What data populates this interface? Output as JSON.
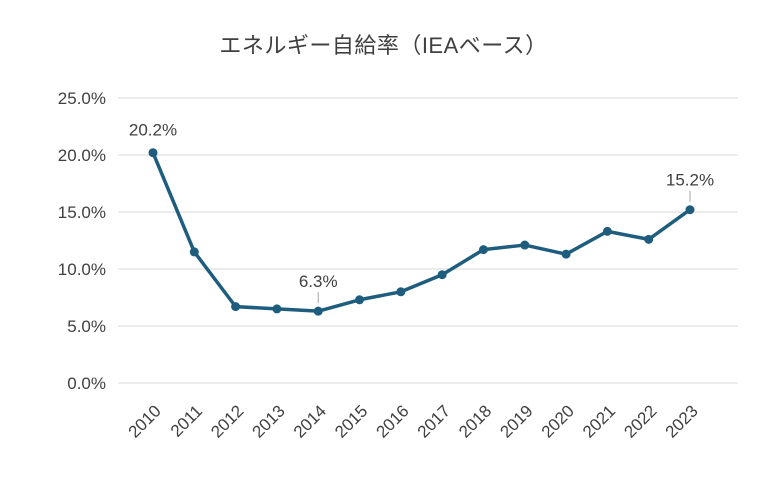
{
  "chart_data": {
    "type": "line",
    "title": "エネルギー自給率（IEAベース）",
    "categories": [
      "2010",
      "2011",
      "2012",
      "2013",
      "2014",
      "2015",
      "2016",
      "2017",
      "2018",
      "2019",
      "2020",
      "2021",
      "2022",
      "2023"
    ],
    "series": [
      {
        "name": "エネルギー自給率",
        "values": [
          20.2,
          11.5,
          6.7,
          6.5,
          6.3,
          7.3,
          8.0,
          9.5,
          11.7,
          12.1,
          11.3,
          13.3,
          12.6,
          15.2
        ]
      }
    ],
    "ylim": [
      0,
      25
    ],
    "ytick_step": 5,
    "ytick_labels": [
      "0.0%",
      "5.0%",
      "10.0%",
      "15.0%",
      "20.0%",
      "25.0%"
    ],
    "xlabel": "",
    "ylabel": "",
    "grid": true,
    "legend": "none",
    "annotations": [
      {
        "index": 0,
        "text": "20.2%",
        "leader": false
      },
      {
        "index": 4,
        "text": "6.3%",
        "leader": true
      },
      {
        "index": 13,
        "text": "15.2%",
        "leader": true
      }
    ],
    "colors": {
      "line": "#1f5d7f",
      "marker": "#1f5d7f",
      "grid": "#d9d9d9",
      "axis_text": "#404040",
      "leader": "#a6a6a6",
      "background": "#ffffff"
    }
  }
}
